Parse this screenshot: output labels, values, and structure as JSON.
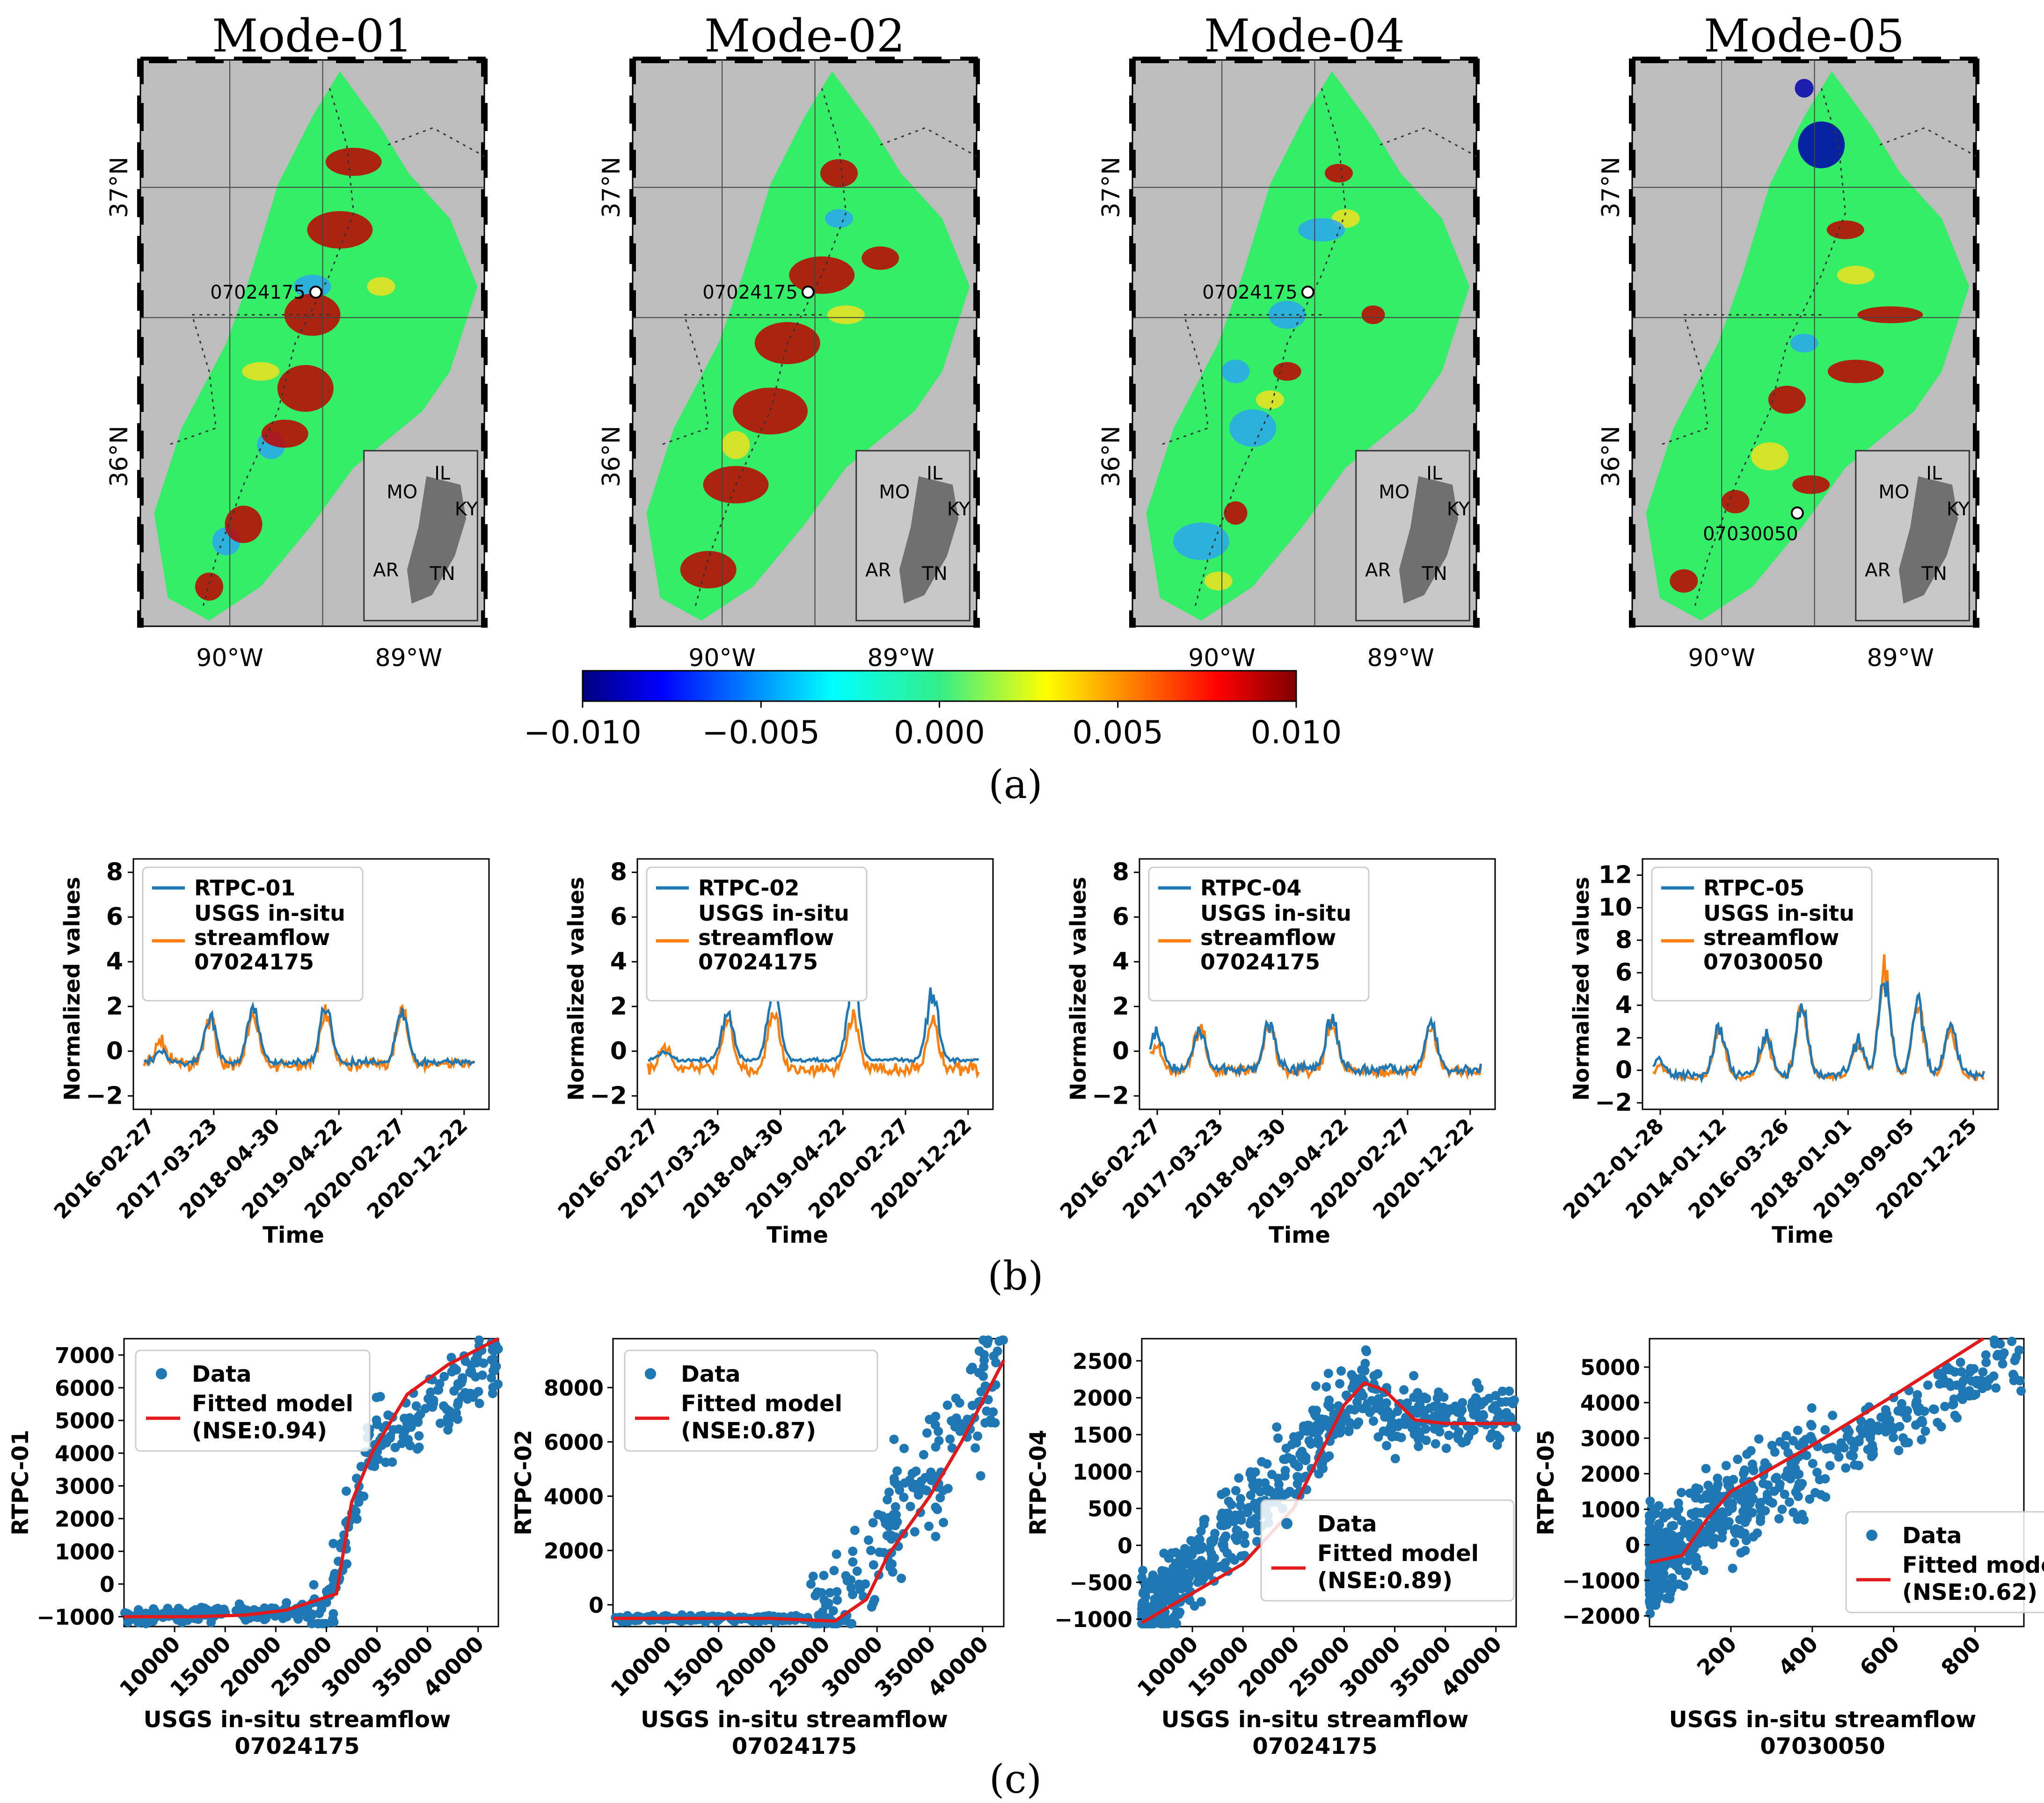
{
  "colors": {
    "blue": "#1f77b4",
    "orange": "#ff7f0e",
    "red": "#e31a1c",
    "grey": "#bdbdbd",
    "green": "#33ee66"
  },
  "panel_labels": {
    "a": "(a)",
    "b": "(b)",
    "c": "(c)"
  },
  "maps": [
    {
      "title": "Mode-01",
      "station": "07024175"
    },
    {
      "title": "Mode-02",
      "station": "07024175"
    },
    {
      "title": "Mode-04",
      "station": "07024175"
    },
    {
      "title": "Mode-05",
      "station": "07030050"
    }
  ],
  "map_axes": {
    "lat_labels": [
      "37°N",
      "36°N"
    ],
    "lon_labels": [
      "90°W",
      "89°W"
    ],
    "inset_states": [
      "MO",
      "IL",
      "KY",
      "AR",
      "TN"
    ]
  },
  "colorbar": {
    "min": -0.01,
    "max": 0.01,
    "ticks": [
      "−0.010",
      "−0.005",
      "0.000",
      "0.005",
      "0.010"
    ],
    "colormap": "jet"
  },
  "chart_data": [
    {
      "type": "line",
      "id": "ts1",
      "xlabel": "Time",
      "ylabel": "Normalized values",
      "ylim": [
        -2.6,
        8.6
      ],
      "yticks": [
        "−2",
        "0",
        "2",
        "4",
        "6",
        "8"
      ],
      "ytick_values": [
        -2,
        0,
        2,
        4,
        6,
        8
      ],
      "x_ticks": [
        "2016-02-27",
        "2017-03-23",
        "2018-04-30",
        "2019-04-22",
        "2020-02-27",
        "2020-12-22"
      ],
      "series": [
        {
          "name": "RTPC-01",
          "peaks": [
            [
              0.05,
              0.6
            ],
            [
              0.2,
              2.4
            ],
            [
              0.33,
              2.8
            ],
            [
              0.55,
              2.8
            ],
            [
              0.78,
              2.8
            ]
          ],
          "base": -0.5,
          "noise": 0.25
        },
        {
          "name": "USGS in-situ streamflow 07024175",
          "peaks": [
            [
              0.05,
              1.1
            ],
            [
              0.2,
              2.3
            ],
            [
              0.33,
              2.5
            ],
            [
              0.55,
              2.6
            ],
            [
              0.78,
              2.7
            ]
          ],
          "base": -0.6,
          "noise": 0.45
        }
      ]
    },
    {
      "type": "line",
      "id": "ts2",
      "xlabel": "Time",
      "ylabel": "Normalized values",
      "ylim": [
        -2.6,
        8.6
      ],
      "yticks": [
        "−2",
        "0",
        "2",
        "4",
        "6",
        "8"
      ],
      "ytick_values": [
        -2,
        0,
        2,
        4,
        6,
        8
      ],
      "x_ticks": [
        "2016-02-27",
        "2017-03-23",
        "2018-04-30",
        "2019-04-22",
        "2020-02-27",
        "2020-12-22"
      ],
      "series": [
        {
          "name": "RTPC-02",
          "peaks": [
            [
              0.05,
              0.4
            ],
            [
              0.24,
              2.4
            ],
            [
              0.38,
              4.0
            ],
            [
              0.62,
              4.2
            ],
            [
              0.86,
              3.5
            ]
          ],
          "base": -0.4,
          "noise": 0.15
        },
        {
          "name": "USGS in-situ streamflow 07024175",
          "peaks": [
            [
              0.05,
              1.1
            ],
            [
              0.24,
              2.4
            ],
            [
              0.38,
              2.9
            ],
            [
              0.62,
              2.8
            ],
            [
              0.86,
              2.6
            ]
          ],
          "base": -0.8,
          "noise": 0.5
        }
      ]
    },
    {
      "type": "line",
      "id": "ts3",
      "xlabel": "Time",
      "ylabel": "Normalized values",
      "ylim": [
        -2.6,
        8.6
      ],
      "yticks": [
        "−2",
        "0",
        "2",
        "4",
        "6",
        "8"
      ],
      "ytick_values": [
        -2,
        0,
        2,
        4,
        6,
        8
      ],
      "x_ticks": [
        "2016-02-27",
        "2017-03-23",
        "2018-04-30",
        "2019-04-22",
        "2020-02-27",
        "2020-12-22"
      ],
      "series": [
        {
          "name": "RTPC-04",
          "peaks": [
            [
              0.02,
              1.9
            ],
            [
              0.15,
              2.0
            ],
            [
              0.36,
              2.5
            ],
            [
              0.55,
              2.6
            ],
            [
              0.85,
              2.3
            ]
          ],
          "base": -0.8,
          "noise": 0.4
        },
        {
          "name": "USGS in-situ streamflow 07024175",
          "peaks": [
            [
              0.02,
              1.4
            ],
            [
              0.15,
              2.3
            ],
            [
              0.36,
              2.4
            ],
            [
              0.55,
              2.7
            ],
            [
              0.85,
              2.2
            ]
          ],
          "base": -0.9,
          "noise": 0.45
        }
      ]
    },
    {
      "type": "line",
      "id": "ts4",
      "xlabel": "Time",
      "ylabel": "Normalized values",
      "ylim": [
        -2.4,
        13
      ],
      "yticks": [
        "−2",
        "0",
        "2",
        "4",
        "6",
        "8",
        "10",
        "12"
      ],
      "ytick_values": [
        -2,
        0,
        2,
        4,
        6,
        8,
        10,
        12
      ],
      "x_ticks": [
        "2012-01-28",
        "2014-01-12",
        "2016-03-26",
        "2018-01-01",
        "2019-09-05",
        "2020-12-25"
      ],
      "series": [
        {
          "name": "RTPC-05",
          "peaks": [
            [
              0.02,
              1.1
            ],
            [
              0.2,
              3.4
            ],
            [
              0.34,
              3.0
            ],
            [
              0.45,
              5.0
            ],
            [
              0.62,
              2.5
            ],
            [
              0.7,
              6.7
            ],
            [
              0.8,
              5.3
            ],
            [
              0.9,
              3.5
            ]
          ],
          "base": -0.3,
          "noise": 0.5
        },
        {
          "name": "USGS in-situ streamflow 07030050",
          "peaks": [
            [
              0.02,
              0.8
            ],
            [
              0.2,
              3.3
            ],
            [
              0.34,
              2.8
            ],
            [
              0.45,
              4.9
            ],
            [
              0.62,
              2.5
            ],
            [
              0.7,
              7.8
            ],
            [
              0.8,
              5.1
            ],
            [
              0.9,
              3.2
            ]
          ],
          "base": -0.4,
          "noise": 0.3
        }
      ]
    },
    {
      "type": "scatter",
      "id": "sc1",
      "xlabel": "USGS in-situ streamflow",
      "xlabel2": "07024175",
      "ylabel": "RTPC-01",
      "xlim": [
        5000,
        42000
      ],
      "ylim": [
        -1300,
        7500
      ],
      "xticks": [
        10000,
        15000,
        20000,
        25000,
        30000,
        35000,
        40000
      ],
      "yticks": [
        -1000,
        0,
        1000,
        2000,
        3000,
        4000,
        5000,
        6000,
        7000
      ],
      "legend": {
        "data": "Data",
        "fit": "Fitted model",
        "nse": "(NSE:0.94)"
      },
      "fit": [
        [
          5000,
          -1000
        ],
        [
          12000,
          -1000
        ],
        [
          17000,
          -950
        ],
        [
          21000,
          -800
        ],
        [
          25000,
          -400
        ],
        [
          26000,
          -300
        ],
        [
          27500,
          2500
        ],
        [
          29500,
          4000
        ],
        [
          33000,
          5800
        ],
        [
          37000,
          6700
        ],
        [
          42000,
          7500
        ]
      ]
    },
    {
      "type": "scatter",
      "id": "sc2",
      "xlabel": "USGS in-situ streamflow",
      "xlabel2": "07024175",
      "ylabel": "RTPC-02",
      "xlim": [
        5000,
        42000
      ],
      "ylim": [
        -800,
        9800
      ],
      "xticks": [
        10000,
        15000,
        20000,
        25000,
        30000,
        35000,
        40000
      ],
      "yticks": [
        0,
        2000,
        4000,
        6000,
        8000
      ],
      "legend": {
        "data": "Data",
        "fit": "Fitted model",
        "nse": "(NSE:0.87)"
      },
      "fit": [
        [
          5000,
          -500
        ],
        [
          15000,
          -500
        ],
        [
          20000,
          -500
        ],
        [
          26000,
          -600
        ],
        [
          29000,
          200
        ],
        [
          31000,
          1800
        ],
        [
          35000,
          4000
        ],
        [
          38000,
          6000
        ],
        [
          42000,
          9000
        ]
      ]
    },
    {
      "type": "scatter",
      "id": "sc3",
      "xlabel": "USGS in-situ streamflow",
      "xlabel2": "07024175",
      "ylabel": "RTPC-04",
      "xlim": [
        5000,
        42000
      ],
      "ylim": [
        -1100,
        2800
      ],
      "xticks": [
        10000,
        15000,
        20000,
        25000,
        30000,
        35000,
        40000
      ],
      "yticks": [
        -1000,
        -500,
        0,
        500,
        1000,
        1500,
        2000,
        2500
      ],
      "legend": {
        "data": "Data",
        "fit": "Fitted model",
        "nse": "(NSE:0.89)"
      },
      "fit": [
        [
          5000,
          -1050
        ],
        [
          10000,
          -650
        ],
        [
          15000,
          -250
        ],
        [
          20000,
          500
        ],
        [
          25000,
          1900
        ],
        [
          27000,
          2200
        ],
        [
          29000,
          2100
        ],
        [
          32000,
          1700
        ],
        [
          35000,
          1650
        ],
        [
          42000,
          1650
        ]
      ]
    },
    {
      "type": "scatter",
      "id": "sc4",
      "xlabel": "USGS in-situ streamflow",
      "xlabel2": "07030050",
      "ylabel": "RTPC-05",
      "xlim": [
        0,
        920
      ],
      "ylim": [
        -2300,
        5800
      ],
      "xticks": [
        200,
        400,
        600,
        800
      ],
      "yticks": [
        -2000,
        -1000,
        0,
        1000,
        2000,
        3000,
        4000,
        5000
      ],
      "legend": {
        "data": "Data",
        "fit": "Fitted model",
        "nse": "(NSE:0.62)"
      },
      "fit": [
        [
          0,
          -500
        ],
        [
          80,
          -300
        ],
        [
          140,
          700
        ],
        [
          200,
          1500
        ],
        [
          400,
          2800
        ],
        [
          600,
          4200
        ],
        [
          820,
          5800
        ]
      ]
    }
  ]
}
